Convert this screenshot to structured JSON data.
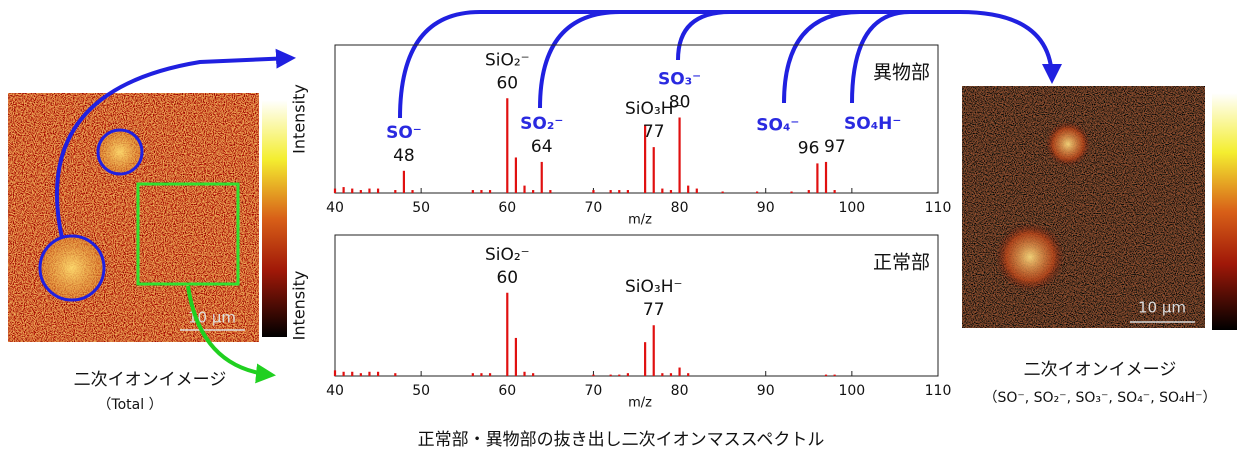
{
  "chart_data": [
    {
      "type": "stick",
      "region_label": "異物部",
      "xlabel": "m/z",
      "ylabel": "Intensity",
      "color": "#e01010",
      "xlim": [
        40,
        110
      ],
      "xticks": [
        40,
        50,
        60,
        70,
        80,
        90,
        100,
        110
      ],
      "ylim": [
        0,
        100
      ],
      "x": [
        40,
        41,
        42,
        43,
        44,
        45,
        47,
        48,
        49,
        56,
        57,
        58,
        60,
        61,
        62,
        63,
        64,
        65,
        70,
        72,
        73,
        74,
        76,
        77,
        78,
        79,
        80,
        81,
        82,
        85,
        89,
        93,
        95,
        96,
        97,
        98
      ],
      "values": [
        3,
        4,
        3,
        2,
        3,
        3,
        2,
        15,
        2,
        2,
        2,
        2,
        64,
        24,
        5,
        2,
        21,
        2,
        2,
        2,
        2,
        2,
        46,
        31,
        3,
        2,
        51,
        5,
        3,
        1,
        1,
        1,
        2,
        20,
        21,
        2
      ],
      "peak_labels": [
        {
          "x": 48,
          "label": "SO⁻",
          "color": "#2a2ae0"
        },
        {
          "x": 60,
          "label": "SiO₂⁻",
          "color": "#111111"
        },
        {
          "x": 64,
          "label": "SO₂⁻",
          "color": "#2a2ae0"
        },
        {
          "x": 77,
          "label": "SiO₃H⁻",
          "color": "#111111"
        },
        {
          "x": 80,
          "label": "SO₃⁻",
          "color": "#2a2ae0"
        },
        {
          "x": 96,
          "label": "SO₄⁻",
          "color": "#2a2ae0"
        },
        {
          "x": 97,
          "label": "SO₄H⁻",
          "color": "#2a2ae0"
        }
      ]
    },
    {
      "type": "stick",
      "region_label": "正常部",
      "xlabel": "m/z",
      "ylabel": "Intensity",
      "color": "#e01010",
      "xlim": [
        40,
        110
      ],
      "xticks": [
        40,
        50,
        60,
        70,
        80,
        90,
        100,
        110
      ],
      "ylim": [
        0,
        100
      ],
      "x": [
        40,
        41,
        42,
        43,
        44,
        45,
        47,
        56,
        57,
        58,
        60,
        61,
        62,
        63,
        70,
        72,
        73,
        74,
        76,
        77,
        78,
        79,
        80,
        81,
        97,
        98
      ],
      "values": [
        4,
        3,
        3,
        2,
        3,
        3,
        2,
        2,
        2,
        2,
        59,
        27,
        3,
        2,
        1,
        1,
        1,
        2,
        24,
        36,
        2,
        2,
        6,
        2,
        1,
        1
      ],
      "peak_labels": [
        {
          "x": 60,
          "label": "SiO₂⁻",
          "color": "#111111"
        },
        {
          "x": 77,
          "label": "SiO₃H⁻",
          "color": "#111111"
        }
      ]
    }
  ],
  "images": {
    "left": {
      "scale": "10 μm",
      "caption": "二次イオンイメージ",
      "subcaption": "（Total ）"
    },
    "right": {
      "scale": "10 μm",
      "caption": "二次イオンイメージ",
      "subcaption": "（SO⁻, SO₂⁻, SO₃⁻, SO₄⁻, SO₄H⁻）"
    }
  },
  "footer": "正常部・異物部の抜き出し二次イオンマススペクトル"
}
